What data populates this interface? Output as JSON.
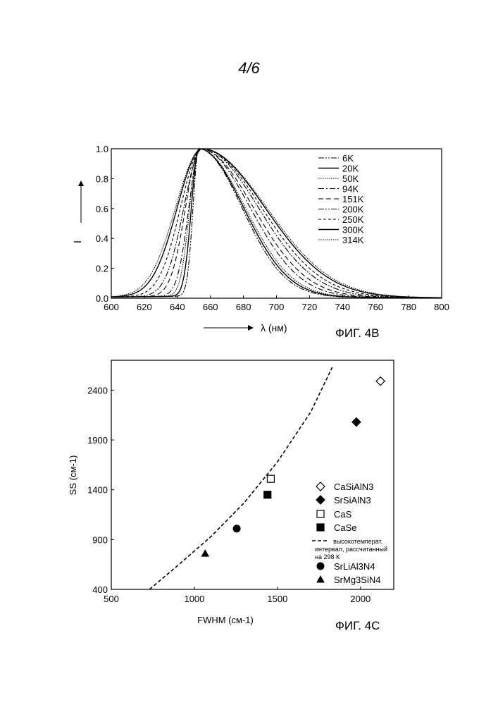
{
  "page_number": "4/6",
  "chart_data": [
    {
      "type": "line",
      "caption": "ФИГ. 4В",
      "title": "",
      "xlabel": "λ (нм)",
      "ylabel": "I",
      "xlim": [
        600,
        800
      ],
      "ylim": [
        0,
        1.0
      ],
      "xticks": [
        600,
        620,
        640,
        660,
        680,
        700,
        720,
        740,
        760,
        780,
        800
      ],
      "yticks": [
        "0.0",
        "0.2",
        "0.4",
        "0.6",
        "0.8",
        "1.0"
      ],
      "legend_position": "top-right",
      "series": [
        {
          "name": "6K",
          "dash": "8,2,2,2,2,2",
          "peak": 653,
          "sigma_left": 3.5,
          "sigma_right": 26
        },
        {
          "name": "20K",
          "dash": "",
          "peak": 653,
          "sigma_left": 4.5,
          "sigma_right": 27
        },
        {
          "name": "50K",
          "dash": "1.5,1.5",
          "peak": 653,
          "sigma_left": 5.5,
          "sigma_right": 28
        },
        {
          "name": "94K",
          "dash": "8,3,2,3",
          "peak": 654,
          "sigma_left": 7,
          "sigma_right": 30
        },
        {
          "name": "151K",
          "dash": "7,4",
          "peak": 654,
          "sigma_left": 9,
          "sigma_right": 32
        },
        {
          "name": "200K",
          "dash": "8,2,2,2,2,2",
          "peak": 655,
          "sigma_left": 11,
          "sigma_right": 34
        },
        {
          "name": "250K",
          "dash": "4,3",
          "peak": 655,
          "sigma_left": 13,
          "sigma_right": 36
        },
        {
          "name": "300K",
          "dash": "",
          "peak": 655,
          "sigma_left": 15,
          "sigma_right": 38
        },
        {
          "name": "314K",
          "dash": "1.5,1.5",
          "peak": 655,
          "sigma_left": 16,
          "sigma_right": 39
        }
      ]
    },
    {
      "type": "scatter",
      "caption": "ФИГ. 4С",
      "title": "",
      "xlabel": "FWHM (см-1)",
      "ylabel": "SS (см-1)",
      "xlim": [
        500,
        2200
      ],
      "ylim": [
        400,
        2700
      ],
      "xticks": [
        500,
        1000,
        1500,
        2000
      ],
      "yticks": [
        400,
        900,
        1400,
        1900,
        2400
      ],
      "legend_position": "right",
      "series": [
        {
          "name": "CaSiAlN3",
          "marker": "diamond-open",
          "x": [
            2120
          ],
          "y": [
            2490
          ]
        },
        {
          "name": "SrSiAlN3",
          "marker": "diamond-filled",
          "x": [
            1975
          ],
          "y": [
            2080
          ]
        },
        {
          "name": "CaS",
          "marker": "square-open",
          "x": [
            1460
          ],
          "y": [
            1510
          ]
        },
        {
          "name": "CaSe",
          "marker": "square-filled",
          "x": [
            1440
          ],
          "y": [
            1350
          ]
        },
        {
          "name": "SrLiAl3N4",
          "marker": "circle-filled",
          "x": [
            1255
          ],
          "y": [
            1010
          ]
        },
        {
          "name": "SrMg3SiN4",
          "marker": "triangle-filled",
          "x": [
            1065
          ],
          "y": [
            760
          ]
        }
      ],
      "fit_line": {
        "name_lines": [
          "высокотемперат.",
          "интервал, рассчитанный",
          "на 298 К"
        ],
        "style": "dashed",
        "x": [
          730,
          900,
          1100,
          1300,
          1500,
          1700,
          1830
        ],
        "y": [
          400,
          640,
          930,
          1270,
          1680,
          2180,
          2630
        ]
      }
    }
  ]
}
